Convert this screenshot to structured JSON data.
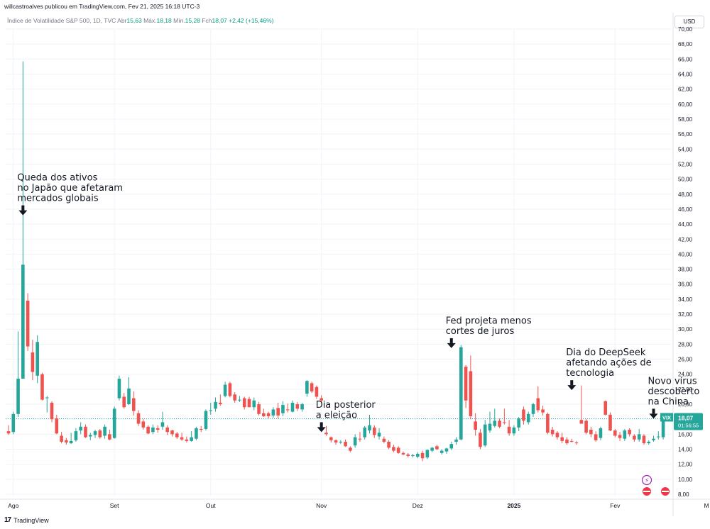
{
  "header": {
    "publisher": "willcastroalves publicou em TradingView.com, Fev 21, 2025 16:18 UTC-3"
  },
  "legend": {
    "title": "Índice de Volatilidade S&P 500, 1D, TVC",
    "open_label": "Abr",
    "open": "15,63",
    "high_label": "Máx.",
    "high": "18,18",
    "low_label": "Mín.",
    "low": "15,28",
    "close_label": "Fch",
    "close": "18,07",
    "change": "+2,42 (+15,46%)"
  },
  "currency": "USD",
  "footer": {
    "brand": "TradingView"
  },
  "price_tag": {
    "symbol": "VIX",
    "value": "18,07",
    "countdown": "01:56:55"
  },
  "colors": {
    "up": "#26a69a",
    "down": "#ef5350",
    "grid": "#f0f3fa",
    "last_line": "#26a69a"
  },
  "chart_data": {
    "type": "candlestick",
    "title": "Índice de Volatilidade S&P 500, 1D, TVC",
    "ylim": [
      7,
      71
    ],
    "y_ticks": [
      "8,00",
      "10,00",
      "12,00",
      "14,00",
      "16,00",
      "18,00",
      "20,00",
      "22,00",
      "24,00",
      "26,00",
      "28,00",
      "30,00",
      "32,00",
      "34,00",
      "36,00",
      "38,00",
      "40,00",
      "42,00",
      "44,00",
      "46,00",
      "48,00",
      "50,00",
      "52,00",
      "54,00",
      "56,00",
      "58,00",
      "60,00",
      "62,00",
      "64,00",
      "66,00",
      "68,00",
      "70,00"
    ],
    "x_ticks": [
      {
        "label": "Ago",
        "index": 1
      },
      {
        "label": "Set",
        "index": 22
      },
      {
        "label": "Out",
        "index": 42
      },
      {
        "label": "Nov",
        "index": 65
      },
      {
        "label": "Dez",
        "index": 85
      },
      {
        "label": "2025",
        "index": 105
      },
      {
        "label": "Fev",
        "index": 126
      },
      {
        "label": "M",
        "index": 145
      }
    ],
    "candles": [
      {
        "o": 16.4,
        "h": 17.2,
        "l": 15.9,
        "c": 16.1
      },
      {
        "o": 16.3,
        "h": 19.0,
        "l": 16.0,
        "c": 18.7
      },
      {
        "o": 18.7,
        "h": 29.7,
        "l": 18.3,
        "c": 23.4
      },
      {
        "o": 23.4,
        "h": 65.7,
        "l": 23.4,
        "c": 38.6
      },
      {
        "o": 33.8,
        "h": 34.8,
        "l": 27.1,
        "c": 27.7
      },
      {
        "o": 26.9,
        "h": 28.6,
        "l": 23.2,
        "c": 24.3
      },
      {
        "o": 23.8,
        "h": 29.2,
        "l": 22.8,
        "c": 28.3
      },
      {
        "o": 24.0,
        "h": 24.2,
        "l": 20.5,
        "c": 20.6
      },
      {
        "o": 20.8,
        "h": 21.1,
        "l": 18.9,
        "c": 20.9
      },
      {
        "o": 20.2,
        "h": 20.4,
        "l": 17.6,
        "c": 18.0
      },
      {
        "o": 18.1,
        "h": 18.6,
        "l": 16.0,
        "c": 16.1
      },
      {
        "o": 15.8,
        "h": 16.3,
        "l": 14.8,
        "c": 15.0
      },
      {
        "o": 15.2,
        "h": 15.5,
        "l": 14.6,
        "c": 14.9
      },
      {
        "o": 14.8,
        "h": 16.2,
        "l": 14.7,
        "c": 15.1
      },
      {
        "o": 15.2,
        "h": 16.8,
        "l": 15.0,
        "c": 16.4
      },
      {
        "o": 16.5,
        "h": 17.6,
        "l": 16.0,
        "c": 17.0
      },
      {
        "o": 17.0,
        "h": 17.3,
        "l": 15.5,
        "c": 15.6
      },
      {
        "o": 15.7,
        "h": 16.2,
        "l": 15.2,
        "c": 15.9
      },
      {
        "o": 15.9,
        "h": 16.6,
        "l": 15.5,
        "c": 16.4
      },
      {
        "o": 16.5,
        "h": 16.7,
        "l": 15.4,
        "c": 15.6
      },
      {
        "o": 15.8,
        "h": 17.3,
        "l": 15.4,
        "c": 17.0
      },
      {
        "o": 16.0,
        "h": 16.6,
        "l": 15.2,
        "c": 15.3
      },
      {
        "o": 15.5,
        "h": 19.7,
        "l": 15.4,
        "c": 19.4
      },
      {
        "o": 20.8,
        "h": 23.8,
        "l": 20.5,
        "c": 23.4
      },
      {
        "o": 21.0,
        "h": 21.5,
        "l": 19.4,
        "c": 19.6
      },
      {
        "o": 20.0,
        "h": 23.6,
        "l": 19.9,
        "c": 22.1
      },
      {
        "o": 20.8,
        "h": 21.7,
        "l": 18.5,
        "c": 19.1
      },
      {
        "o": 18.8,
        "h": 19.2,
        "l": 17.1,
        "c": 17.4
      },
      {
        "o": 17.7,
        "h": 18.0,
        "l": 16.6,
        "c": 16.9
      },
      {
        "o": 17.0,
        "h": 17.2,
        "l": 16.0,
        "c": 16.1
      },
      {
        "o": 16.3,
        "h": 17.3,
        "l": 16.0,
        "c": 16.9
      },
      {
        "o": 16.8,
        "h": 17.2,
        "l": 16.2,
        "c": 16.6
      },
      {
        "o": 17.0,
        "h": 19.0,
        "l": 16.6,
        "c": 17.6
      },
      {
        "o": 16.9,
        "h": 17.2,
        "l": 15.9,
        "c": 16.3
      },
      {
        "o": 16.5,
        "h": 16.6,
        "l": 15.7,
        "c": 16.0
      },
      {
        "o": 16.1,
        "h": 16.3,
        "l": 15.4,
        "c": 15.6
      },
      {
        "o": 15.6,
        "h": 16.2,
        "l": 15.1,
        "c": 15.3
      },
      {
        "o": 15.3,
        "h": 15.7,
        "l": 14.9,
        "c": 15.1
      },
      {
        "o": 15.1,
        "h": 16.4,
        "l": 15.0,
        "c": 15.6
      },
      {
        "o": 15.4,
        "h": 17.0,
        "l": 15.2,
        "c": 16.8
      },
      {
        "o": 16.7,
        "h": 17.1,
        "l": 16.3,
        "c": 16.6
      },
      {
        "o": 16.7,
        "h": 19.3,
        "l": 16.5,
        "c": 19.1
      },
      {
        "o": 19.1,
        "h": 20.2,
        "l": 18.6,
        "c": 19.2
      },
      {
        "o": 19.4,
        "h": 20.9,
        "l": 19.0,
        "c": 20.3
      },
      {
        "o": 20.2,
        "h": 21.3,
        "l": 19.8,
        "c": 20.0
      },
      {
        "o": 21.1,
        "h": 23.0,
        "l": 20.9,
        "c": 22.6
      },
      {
        "o": 22.8,
        "h": 23.0,
        "l": 20.9,
        "c": 21.1
      },
      {
        "o": 21.3,
        "h": 21.6,
        "l": 20.2,
        "c": 20.5
      },
      {
        "o": 20.5,
        "h": 21.1,
        "l": 20.3,
        "c": 20.6
      },
      {
        "o": 20.8,
        "h": 21.0,
        "l": 19.3,
        "c": 19.6
      },
      {
        "o": 20.7,
        "h": 21.0,
        "l": 19.6,
        "c": 19.6
      },
      {
        "o": 19.6,
        "h": 20.9,
        "l": 19.2,
        "c": 20.5
      },
      {
        "o": 20.0,
        "h": 20.3,
        "l": 18.5,
        "c": 18.7
      },
      {
        "o": 18.8,
        "h": 19.4,
        "l": 18.3,
        "c": 18.4
      },
      {
        "o": 18.8,
        "h": 19.0,
        "l": 18.1,
        "c": 18.4
      },
      {
        "o": 18.5,
        "h": 19.6,
        "l": 18.2,
        "c": 19.3
      },
      {
        "o": 19.5,
        "h": 20.2,
        "l": 18.1,
        "c": 18.5
      },
      {
        "o": 18.8,
        "h": 20.4,
        "l": 18.4,
        "c": 19.9
      },
      {
        "o": 19.3,
        "h": 20.1,
        "l": 18.9,
        "c": 19.2
      },
      {
        "o": 19.0,
        "h": 20.5,
        "l": 18.9,
        "c": 20.2
      },
      {
        "o": 20.0,
        "h": 20.3,
        "l": 19.1,
        "c": 19.4
      },
      {
        "o": 19.3,
        "h": 20.2,
        "l": 19.0,
        "c": 20.0
      },
      {
        "o": 21.4,
        "h": 23.2,
        "l": 21.0,
        "c": 23.1
      },
      {
        "o": 22.8,
        "h": 23.0,
        "l": 21.5,
        "c": 21.7
      },
      {
        "o": 22.3,
        "h": 22.5,
        "l": 20.7,
        "c": 21.0
      },
      {
        "o": 20.8,
        "h": 21.2,
        "l": 20.2,
        "c": 20.5
      },
      {
        "o": 16.2,
        "h": 17.1,
        "l": 15.8,
        "c": 16.0
      },
      {
        "o": 15.6,
        "h": 15.7,
        "l": 14.9,
        "c": 15.2
      },
      {
        "o": 15.2,
        "h": 15.3,
        "l": 14.6,
        "c": 14.9
      },
      {
        "o": 14.9,
        "h": 15.2,
        "l": 14.7,
        "c": 15.0
      },
      {
        "o": 15.0,
        "h": 15.3,
        "l": 14.3,
        "c": 14.4
      },
      {
        "o": 14.2,
        "h": 14.4,
        "l": 13.6,
        "c": 13.8
      },
      {
        "o": 14.5,
        "h": 16.0,
        "l": 14.2,
        "c": 15.6
      },
      {
        "o": 15.4,
        "h": 16.3,
        "l": 15.0,
        "c": 15.3
      },
      {
        "o": 15.6,
        "h": 17.1,
        "l": 15.3,
        "c": 16.9
      },
      {
        "o": 16.5,
        "h": 18.6,
        "l": 16.1,
        "c": 17.2
      },
      {
        "o": 16.9,
        "h": 17.2,
        "l": 15.5,
        "c": 15.9
      },
      {
        "o": 15.7,
        "h": 16.8,
        "l": 15.3,
        "c": 16.2
      },
      {
        "o": 15.4,
        "h": 15.7,
        "l": 14.8,
        "c": 15.0
      },
      {
        "o": 15.0,
        "h": 15.2,
        "l": 14.0,
        "c": 14.2
      },
      {
        "o": 14.3,
        "h": 14.6,
        "l": 13.6,
        "c": 13.8
      },
      {
        "o": 14.2,
        "h": 14.4,
        "l": 13.4,
        "c": 13.5
      },
      {
        "o": 13.5,
        "h": 13.7,
        "l": 13.2,
        "c": 13.3
      },
      {
        "o": 13.3,
        "h": 13.5,
        "l": 12.9,
        "c": 13.1
      },
      {
        "o": 13.1,
        "h": 13.4,
        "l": 12.9,
        "c": 13.2
      },
      {
        "o": 13.0,
        "h": 13.6,
        "l": 12.8,
        "c": 13.4
      },
      {
        "o": 13.5,
        "h": 13.8,
        "l": 12.4,
        "c": 12.8
      },
      {
        "o": 12.9,
        "h": 14.0,
        "l": 12.7,
        "c": 13.9
      },
      {
        "o": 13.8,
        "h": 14.3,
        "l": 13.6,
        "c": 14.2
      },
      {
        "o": 14.4,
        "h": 14.6,
        "l": 13.9,
        "c": 14.0
      },
      {
        "o": 13.5,
        "h": 14.0,
        "l": 13.3,
        "c": 13.8
      },
      {
        "o": 13.7,
        "h": 14.2,
        "l": 13.4,
        "c": 14.1
      },
      {
        "o": 14.1,
        "h": 15.0,
        "l": 13.9,
        "c": 14.7
      },
      {
        "o": 15.0,
        "h": 15.6,
        "l": 14.6,
        "c": 15.3
      },
      {
        "o": 15.3,
        "h": 27.9,
        "l": 15.2,
        "c": 27.6
      },
      {
        "o": 25.0,
        "h": 25.2,
        "l": 19.5,
        "c": 20.5
      },
      {
        "o": 24.4,
        "h": 26.5,
        "l": 18.0,
        "c": 18.4
      },
      {
        "o": 17.7,
        "h": 18.8,
        "l": 15.8,
        "c": 16.6
      },
      {
        "o": 16.2,
        "h": 16.7,
        "l": 14.0,
        "c": 14.3
      },
      {
        "o": 14.5,
        "h": 17.9,
        "l": 14.3,
        "c": 17.3
      },
      {
        "o": 16.5,
        "h": 19.0,
        "l": 16.2,
        "c": 17.4
      },
      {
        "o": 17.1,
        "h": 19.4,
        "l": 16.9,
        "c": 17.8
      },
      {
        "o": 17.8,
        "h": 18.1,
        "l": 16.8,
        "c": 17.0
      },
      {
        "o": 17.6,
        "h": 19.4,
        "l": 17.3,
        "c": 17.5
      },
      {
        "o": 17.0,
        "h": 17.9,
        "l": 15.8,
        "c": 16.1
      },
      {
        "o": 16.1,
        "h": 17.2,
        "l": 15.8,
        "c": 16.9
      },
      {
        "o": 16.9,
        "h": 18.3,
        "l": 16.4,
        "c": 18.1
      },
      {
        "o": 19.3,
        "h": 19.7,
        "l": 17.3,
        "c": 17.8
      },
      {
        "o": 17.6,
        "h": 19.0,
        "l": 17.3,
        "c": 18.7
      },
      {
        "o": 18.7,
        "h": 20.2,
        "l": 18.3,
        "c": 20.0
      },
      {
        "o": 20.8,
        "h": 22.4,
        "l": 18.9,
        "c": 19.2
      },
      {
        "o": 19.3,
        "h": 19.8,
        "l": 18.5,
        "c": 18.9
      },
      {
        "o": 18.7,
        "h": 18.9,
        "l": 16.0,
        "c": 16.2
      },
      {
        "o": 16.6,
        "h": 17.0,
        "l": 15.7,
        "c": 16.0
      },
      {
        "o": 16.2,
        "h": 16.4,
        "l": 15.3,
        "c": 15.6
      },
      {
        "o": 15.6,
        "h": 16.2,
        "l": 14.8,
        "c": 15.1
      },
      {
        "o": 15.3,
        "h": 15.6,
        "l": 14.6,
        "c": 14.8
      },
      {
        "o": 15.1,
        "h": 15.4,
        "l": 14.9,
        "c": 15.0
      },
      {
        "o": 14.9,
        "h": 15.1,
        "l": 14.6,
        "c": 14.8
      },
      {
        "o": 17.9,
        "h": 22.5,
        "l": 17.5,
        "c": 17.4
      },
      {
        "o": 17.8,
        "h": 18.0,
        "l": 16.0,
        "c": 16.2
      },
      {
        "o": 16.6,
        "h": 17.0,
        "l": 15.6,
        "c": 16.0
      },
      {
        "o": 16.0,
        "h": 16.4,
        "l": 15.0,
        "c": 15.2
      },
      {
        "o": 15.5,
        "h": 17.0,
        "l": 15.2,
        "c": 16.8
      },
      {
        "o": 20.4,
        "h": 20.5,
        "l": 18.5,
        "c": 18.6
      },
      {
        "o": 18.6,
        "h": 18.9,
        "l": 16.4,
        "c": 16.5
      },
      {
        "o": 16.5,
        "h": 16.7,
        "l": 15.6,
        "c": 15.8
      },
      {
        "o": 15.9,
        "h": 16.3,
        "l": 15.1,
        "c": 15.5
      },
      {
        "o": 15.4,
        "h": 16.7,
        "l": 15.1,
        "c": 16.5
      },
      {
        "o": 16.6,
        "h": 16.8,
        "l": 15.7,
        "c": 16.0
      },
      {
        "o": 15.8,
        "h": 16.0,
        "l": 15.0,
        "c": 15.3
      },
      {
        "o": 15.3,
        "h": 16.7,
        "l": 15.0,
        "c": 16.0
      },
      {
        "o": 15.8,
        "h": 16.0,
        "l": 14.6,
        "c": 14.8
      },
      {
        "o": 14.8,
        "h": 15.2,
        "l": 14.6,
        "c": 15.0
      },
      {
        "o": 15.2,
        "h": 15.8,
        "l": 15.0,
        "c": 15.4
      },
      {
        "o": 15.6,
        "h": 16.4,
        "l": 15.3,
        "c": 15.7
      },
      {
        "o": 15.6,
        "h": 18.2,
        "l": 15.3,
        "c": 18.1
      }
    ],
    "last_value": 18.07,
    "annotations": [
      {
        "lines": [
          "Queda dos ativos",
          "no Japão que afetaram",
          "mercados globais"
        ],
        "candle": 3,
        "arrow_value": 46.5
      },
      {
        "lines": [
          "Dia posterior",
          "a eleição"
        ],
        "candle": 65,
        "arrow_value": 17.6
      },
      {
        "lines": [
          "Fed projeta menos",
          "cortes de juros"
        ],
        "candle": 92,
        "arrow_value": 28.8
      },
      {
        "lines": [
          "Dia do DeepSeek",
          "afetando ações de",
          "tecnologia"
        ],
        "candle": 117,
        "arrow_value": 23.2
      },
      {
        "lines": [
          "Novo vírus",
          "descoberto",
          "na China"
        ],
        "candle": 134,
        "arrow_value": 19.4
      }
    ]
  }
}
